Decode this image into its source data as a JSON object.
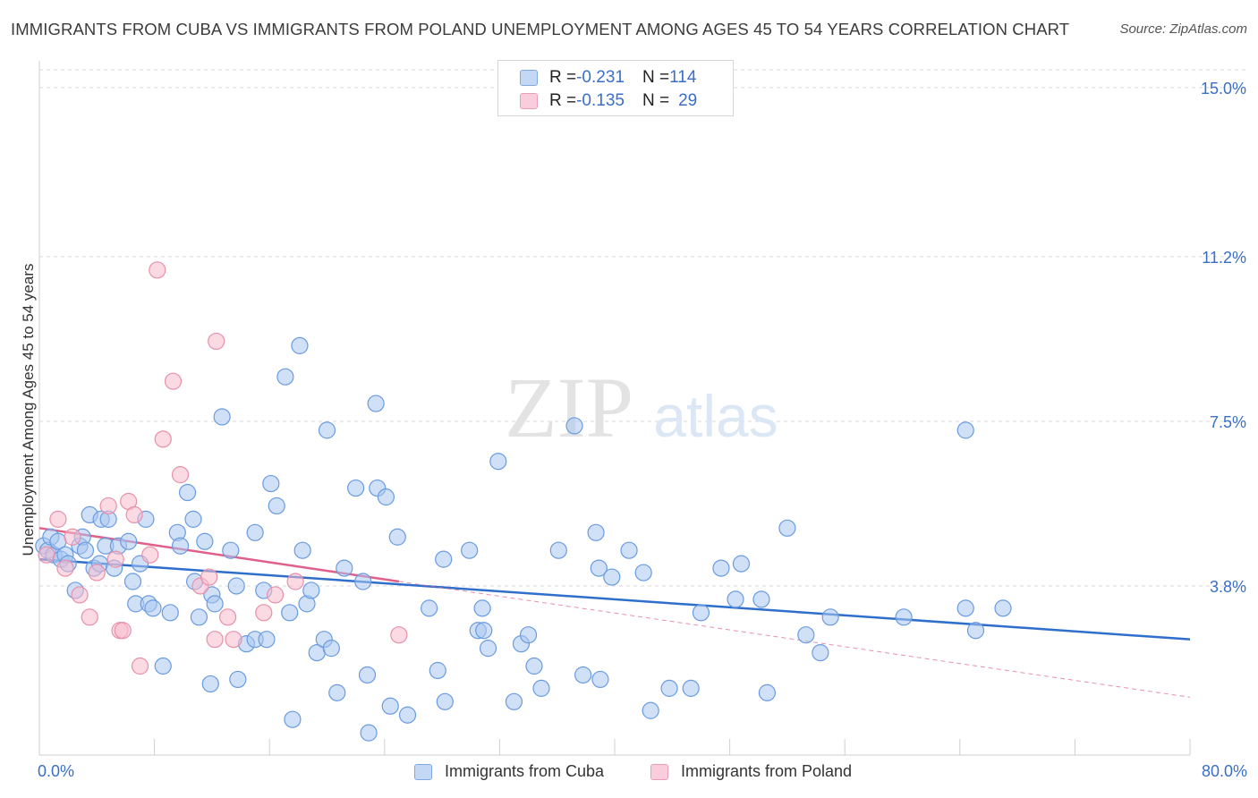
{
  "title": "IMMIGRANTS FROM CUBA VS IMMIGRANTS FROM POLAND UNEMPLOYMENT AMONG AGES 45 TO 54 YEARS CORRELATION CHART",
  "source": "Source: ZipAtlas.com",
  "watermark": {
    "zip": "ZIP",
    "atlas": "atlas"
  },
  "colors": {
    "cuba_fill": "#aac6f0",
    "cuba_stroke": "#6a9be0",
    "cuba_line": "#2f6fcc",
    "poland_fill": "#f7bccd",
    "poland_stroke": "#e890aa",
    "poland_line": "#e0608a",
    "tick_text": "#3a6fc8",
    "grid": "#d9d9d9"
  },
  "legend_top": {
    "rows": [
      {
        "r_label": "R = ",
        "r_value": "-0.231",
        "n_label": "N = ",
        "n_value": "114"
      },
      {
        "r_label": "R = ",
        "r_value": "-0.135",
        "n_label": "N = ",
        "n_value": "29"
      }
    ]
  },
  "legend_bottom": {
    "cuba": "Immigrants from Cuba",
    "poland": "Immigrants from Poland"
  },
  "chart_data": {
    "type": "scatter",
    "title": "IMMIGRANTS FROM CUBA VS IMMIGRANTS FROM POLAND UNEMPLOYMENT AMONG AGES 45 TO 54 YEARS CORRELATION CHART",
    "xlabel": "",
    "ylabel": "Unemployment Among Ages 45 to 54 years",
    "xlim": [
      0,
      80
    ],
    "ylim": [
      0,
      15.4
    ],
    "x_tick_labels": [
      "0.0%",
      "80.0%"
    ],
    "y_ticks": [
      3.8,
      7.5,
      11.2,
      15.0
    ],
    "y_tick_labels": [
      "3.8%",
      "7.5%",
      "11.2%",
      "15.0%"
    ],
    "grid": true,
    "legend_position": "top-center",
    "series": [
      {
        "name": "Immigrants from Cuba",
        "trend": {
          "x": [
            0,
            80
          ],
          "y": [
            4.4,
            2.6
          ]
        },
        "points": [
          [
            0.3,
            4.7
          ],
          [
            0.6,
            4.6
          ],
          [
            0.8,
            4.9
          ],
          [
            1.0,
            4.5
          ],
          [
            1.3,
            4.8
          ],
          [
            1.5,
            4.4
          ],
          [
            1.8,
            4.5
          ],
          [
            2.0,
            4.3
          ],
          [
            2.5,
            3.7
          ],
          [
            2.8,
            4.7
          ],
          [
            3.0,
            4.9
          ],
          [
            3.2,
            4.6
          ],
          [
            3.5,
            5.4
          ],
          [
            3.8,
            4.2
          ],
          [
            4.2,
            4.3
          ],
          [
            4.3,
            5.3
          ],
          [
            4.8,
            5.3
          ],
          [
            4.6,
            4.7
          ],
          [
            5.2,
            4.2
          ],
          [
            5.5,
            4.7
          ],
          [
            6.2,
            4.8
          ],
          [
            6.5,
            3.9
          ],
          [
            6.7,
            3.4
          ],
          [
            7.0,
            4.3
          ],
          [
            7.4,
            5.3
          ],
          [
            7.6,
            3.4
          ],
          [
            7.9,
            3.3
          ],
          [
            8.6,
            2.0
          ],
          [
            9.1,
            3.2
          ],
          [
            9.6,
            5.0
          ],
          [
            9.8,
            4.7
          ],
          [
            10.3,
            5.9
          ],
          [
            10.7,
            5.3
          ],
          [
            10.8,
            3.9
          ],
          [
            11.1,
            3.1
          ],
          [
            11.5,
            4.8
          ],
          [
            11.9,
            1.6
          ],
          [
            12.0,
            3.6
          ],
          [
            12.2,
            3.4
          ],
          [
            12.7,
            7.6
          ],
          [
            13.3,
            4.6
          ],
          [
            13.7,
            3.8
          ],
          [
            13.8,
            1.7
          ],
          [
            14.4,
            2.5
          ],
          [
            15.0,
            2.6
          ],
          [
            15.0,
            5.0
          ],
          [
            15.6,
            3.7
          ],
          [
            15.8,
            2.6
          ],
          [
            16.1,
            6.1
          ],
          [
            16.5,
            5.6
          ],
          [
            17.1,
            8.5
          ],
          [
            17.4,
            3.2
          ],
          [
            17.6,
            0.8
          ],
          [
            18.1,
            9.2
          ],
          [
            18.3,
            4.6
          ],
          [
            18.6,
            3.4
          ],
          [
            18.9,
            3.7
          ],
          [
            19.3,
            2.3
          ],
          [
            19.8,
            2.6
          ],
          [
            20.0,
            7.3
          ],
          [
            20.3,
            2.4
          ],
          [
            20.7,
            1.4
          ],
          [
            21.2,
            4.2
          ],
          [
            22.0,
            6.0
          ],
          [
            22.5,
            3.9
          ],
          [
            22.8,
            1.8
          ],
          [
            22.9,
            0.5
          ],
          [
            23.4,
            7.9
          ],
          [
            23.5,
            6.0
          ],
          [
            24.1,
            5.8
          ],
          [
            24.4,
            1.1
          ],
          [
            24.9,
            4.9
          ],
          [
            25.6,
            0.9
          ],
          [
            27.1,
            3.3
          ],
          [
            27.7,
            1.9
          ],
          [
            28.2,
            1.2
          ],
          [
            28.1,
            4.4
          ],
          [
            29.9,
            4.6
          ],
          [
            30.5,
            2.8
          ],
          [
            30.9,
            2.8
          ],
          [
            30.8,
            3.3
          ],
          [
            31.2,
            2.4
          ],
          [
            31.9,
            6.6
          ],
          [
            33.0,
            1.2
          ],
          [
            33.5,
            2.5
          ],
          [
            34.0,
            2.7
          ],
          [
            34.4,
            2.0
          ],
          [
            34.9,
            1.5
          ],
          [
            36.1,
            4.6
          ],
          [
            37.2,
            7.4
          ],
          [
            37.8,
            1.8
          ],
          [
            38.7,
            5.0
          ],
          [
            38.9,
            4.2
          ],
          [
            39.0,
            1.7
          ],
          [
            39.8,
            4.0
          ],
          [
            41.0,
            4.6
          ],
          [
            42.0,
            4.1
          ],
          [
            42.5,
            1.0
          ],
          [
            43.8,
            1.5
          ],
          [
            45.3,
            1.5
          ],
          [
            46.0,
            3.2
          ],
          [
            47.4,
            4.2
          ],
          [
            48.4,
            3.5
          ],
          [
            48.8,
            4.3
          ],
          [
            50.2,
            3.5
          ],
          [
            50.6,
            1.4
          ],
          [
            52.0,
            5.1
          ],
          [
            53.3,
            2.7
          ],
          [
            54.3,
            2.3
          ],
          [
            55.0,
            3.1
          ],
          [
            60.1,
            3.1
          ],
          [
            64.4,
            7.3
          ],
          [
            64.4,
            3.3
          ],
          [
            65.1,
            2.8
          ],
          [
            67.0,
            3.3
          ]
        ]
      },
      {
        "name": "Immigrants from Poland",
        "trend": {
          "x": [
            0,
            25
          ],
          "y": [
            5.1,
            3.9
          ]
        },
        "trend_extension": {
          "x": [
            25,
            80
          ],
          "y": [
            3.9,
            1.3
          ]
        },
        "points": [
          [
            0.5,
            4.5
          ],
          [
            1.3,
            5.3
          ],
          [
            1.8,
            4.2
          ],
          [
            2.3,
            4.9
          ],
          [
            2.8,
            3.6
          ],
          [
            3.5,
            3.1
          ],
          [
            4.0,
            4.1
          ],
          [
            4.8,
            5.6
          ],
          [
            5.3,
            4.4
          ],
          [
            5.6,
            2.8
          ],
          [
            5.8,
            2.8
          ],
          [
            6.2,
            5.7
          ],
          [
            6.6,
            5.4
          ],
          [
            7.0,
            2.0
          ],
          [
            7.7,
            4.5
          ],
          [
            8.2,
            10.9
          ],
          [
            8.6,
            7.1
          ],
          [
            9.3,
            8.4
          ],
          [
            9.8,
            6.3
          ],
          [
            11.2,
            3.8
          ],
          [
            11.8,
            4.0
          ],
          [
            12.2,
            2.6
          ],
          [
            12.3,
            9.3
          ],
          [
            13.1,
            3.1
          ],
          [
            13.5,
            2.6
          ],
          [
            15.6,
            3.2
          ],
          [
            16.4,
            3.6
          ],
          [
            17.8,
            3.9
          ],
          [
            25.0,
            2.7
          ]
        ]
      }
    ]
  }
}
